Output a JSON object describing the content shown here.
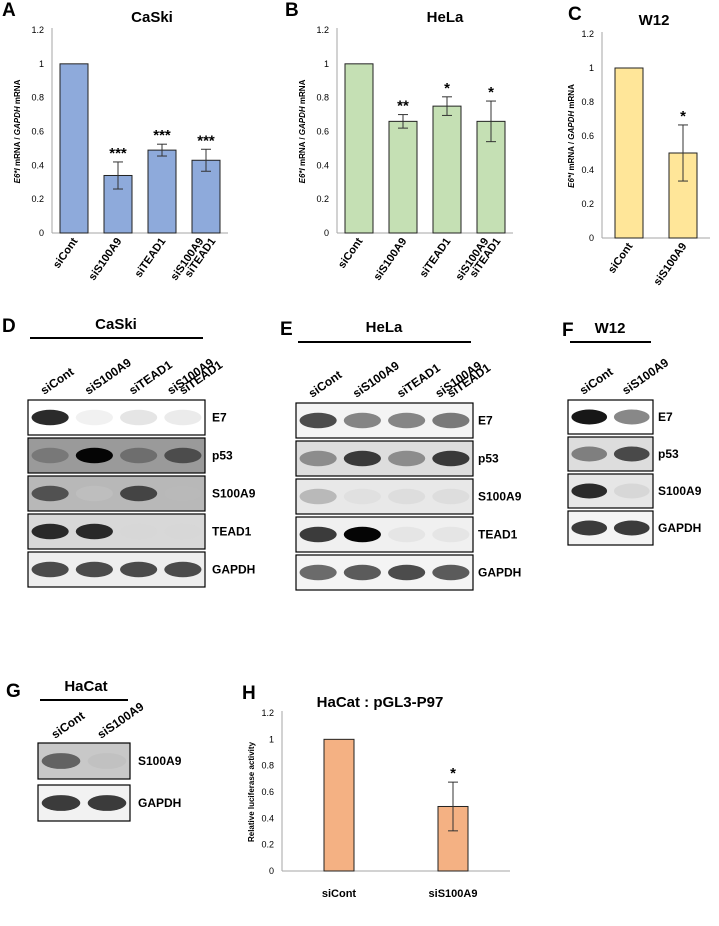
{
  "chart_data": [
    {
      "panel": "A",
      "type": "bar",
      "title": "CaSki",
      "ylabel_parts": [
        "E6*I",
        " mRNA / ",
        "GAPDH",
        " mRNA"
      ],
      "categories": [
        [
          "siCont"
        ],
        [
          "siS100A9"
        ],
        [
          "siTEAD1"
        ],
        [
          "siS100A9",
          "siTEAD1"
        ]
      ],
      "values": [
        1.0,
        0.34,
        0.49,
        0.43
      ],
      "errors": [
        0,
        0.08,
        0.035,
        0.065
      ],
      "annotations": [
        "",
        "***",
        "***",
        "***"
      ],
      "ylim": [
        0,
        1.2
      ],
      "yticks": [
        "0",
        "0.2",
        "0.4",
        "0.6",
        "0.8",
        "1",
        "1.2"
      ],
      "color": "#8eaadb"
    },
    {
      "panel": "B",
      "type": "bar",
      "title": "HeLa",
      "ylabel_parts": [
        "E6*I",
        " mRNA / ",
        "GAPDH",
        " mRNA"
      ],
      "categories": [
        [
          "siCont"
        ],
        [
          "siS100A9"
        ],
        [
          "siTEAD1"
        ],
        [
          "siS100A9",
          "siTEAD1"
        ]
      ],
      "values": [
        1.0,
        0.66,
        0.75,
        0.66
      ],
      "errors": [
        0,
        0.04,
        0.055,
        0.12
      ],
      "annotations": [
        "",
        "**",
        "*",
        "*"
      ],
      "ylim": [
        0,
        1.2
      ],
      "yticks": [
        "0",
        "0.2",
        "0.4",
        "0.6",
        "0.8",
        "1",
        "1.2"
      ],
      "color": "#c5e0b4"
    },
    {
      "panel": "C",
      "type": "bar",
      "title": "W12",
      "ylabel_parts": [
        "E6*I",
        " mRNA / ",
        "GAPDH",
        " mRNA"
      ],
      "categories": [
        [
          "siCont"
        ],
        [
          "siS100A9"
        ]
      ],
      "values": [
        1.0,
        0.5
      ],
      "errors": [
        0,
        0.165
      ],
      "annotations": [
        "",
        "*"
      ],
      "ylim": [
        0,
        1.2
      ],
      "yticks": [
        "0",
        "0.2",
        "0.4",
        "0.6",
        "0.8",
        "1",
        "1.2"
      ],
      "color": "#ffe699"
    },
    {
      "panel": "H",
      "type": "bar",
      "title": "HaCat : pGL3-P97",
      "ylabel_parts": [
        "Relative luciferase activity"
      ],
      "categories": [
        [
          "siCont"
        ],
        [
          "siS100A9"
        ]
      ],
      "values": [
        1.0,
        0.49
      ],
      "errors": [
        0,
        0.185
      ],
      "annotations": [
        "",
        "*"
      ],
      "ylim": [
        0,
        1.2
      ],
      "yticks": [
        "0",
        "0.2",
        "0.4",
        "0.6",
        "0.8",
        "1",
        "1.2"
      ],
      "color": "#f4b183"
    }
  ],
  "blots": [
    {
      "panel": "D",
      "title": "CaSki",
      "lanes": [
        [
          "siCont"
        ],
        [
          "siS100A9"
        ],
        [
          "siTEAD1"
        ],
        [
          "siS100A9",
          "siTEAD1"
        ]
      ],
      "rows": [
        {
          "label": "E7",
          "intensity": [
            0.9,
            0.05,
            0.15,
            0.1
          ],
          "bg": "#ffffff"
        },
        {
          "label": "p53",
          "intensity": [
            0.55,
            1.0,
            0.6,
            0.75
          ],
          "bg": "#9a9a9a"
        },
        {
          "label": "S100A9",
          "intensity": [
            0.75,
            0.15,
            0.8,
            0.2
          ],
          "bg": "#b8b8b8"
        },
        {
          "label": "TEAD1",
          "intensity": [
            0.9,
            0.9,
            0.08,
            0.08
          ],
          "bg": "#d8d8d8"
        },
        {
          "label": "GAPDH",
          "intensity": [
            0.8,
            0.8,
            0.8,
            0.8
          ],
          "bg": "#eeeeee"
        }
      ]
    },
    {
      "panel": "E",
      "title": "HeLa",
      "lanes": [
        [
          "siCont"
        ],
        [
          "siS100A9"
        ],
        [
          "siTEAD1"
        ],
        [
          "siS100A9",
          "siTEAD1"
        ]
      ],
      "rows": [
        {
          "label": "E7",
          "intensity": [
            0.8,
            0.6,
            0.6,
            0.65
          ],
          "bg": "#f4f4f4"
        },
        {
          "label": "p53",
          "intensity": [
            0.55,
            0.85,
            0.55,
            0.85
          ],
          "bg": "#dddddd"
        },
        {
          "label": "S100A9",
          "intensity": [
            0.35,
            0.08,
            0.1,
            0.1
          ],
          "bg": "#e8e8e8"
        },
        {
          "label": "TEAD1",
          "intensity": [
            0.85,
            1.0,
            0.08,
            0.08
          ],
          "bg": "#f0f0f0"
        },
        {
          "label": "GAPDH",
          "intensity": [
            0.7,
            0.75,
            0.8,
            0.75
          ],
          "bg": "#f4f4f4"
        }
      ]
    },
    {
      "panel": "F",
      "title": "W12",
      "lanes": [
        [
          "siCont"
        ],
        [
          "siS100A9"
        ]
      ],
      "rows": [
        {
          "label": "E7",
          "intensity": [
            0.95,
            0.6
          ],
          "bg": "#ffffff"
        },
        {
          "label": "p53",
          "intensity": [
            0.6,
            0.8
          ],
          "bg": "#dddddd"
        },
        {
          "label": "S100A9",
          "intensity": [
            0.9,
            0.15
          ],
          "bg": "#e6e6e6"
        },
        {
          "label": "GAPDH",
          "intensity": [
            0.85,
            0.85
          ],
          "bg": "#f4f4f4"
        }
      ]
    },
    {
      "panel": "G",
      "title": "HaCat",
      "lanes": [
        [
          "siCont"
        ],
        [
          "siS100A9"
        ]
      ],
      "rows": [
        {
          "label": "S100A9",
          "intensity": [
            0.7,
            0.2
          ],
          "bg": "#c8c8c8"
        },
        {
          "label": "GAPDH",
          "intensity": [
            0.85,
            0.85
          ],
          "bg": "#f2f2f2"
        }
      ]
    }
  ]
}
